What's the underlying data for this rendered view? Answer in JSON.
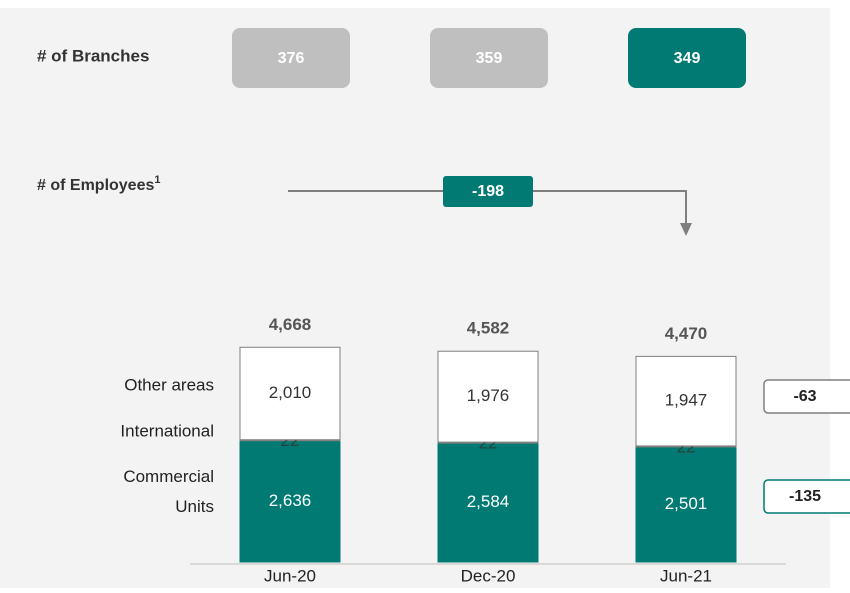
{
  "branches": {
    "label": "# of Branches",
    "values": [
      376,
      359,
      349
    ],
    "colors": [
      "#bfbfbf",
      "#bfbfbf",
      "#007a72"
    ]
  },
  "employees": {
    "label": "# of Employees",
    "note": "1",
    "change": -198
  },
  "chart_data": {
    "type": "stacked_bar",
    "categories": [
      "Jun-20",
      "Dec-20",
      "Jun-21"
    ],
    "series": [
      {
        "name": "Commercial Units",
        "color": "#007a72",
        "values": [
          2636,
          2584,
          2501
        ],
        "value_labels": [
          "2,636",
          "2,584",
          "2,501"
        ],
        "change": -135
      },
      {
        "name": "International",
        "color": "#ffffff",
        "values": [
          22,
          22,
          22
        ]
      },
      {
        "name": "Other areas",
        "color": "#ffffff",
        "values": [
          2010,
          1976,
          1947
        ],
        "value_labels": [
          "2,010",
          "1,976",
          "1,947"
        ],
        "change": -63
      }
    ],
    "totals": [
      4668,
      4582,
      4470
    ],
    "total_labels": [
      "4,668",
      "4,582",
      "4,470"
    ]
  }
}
